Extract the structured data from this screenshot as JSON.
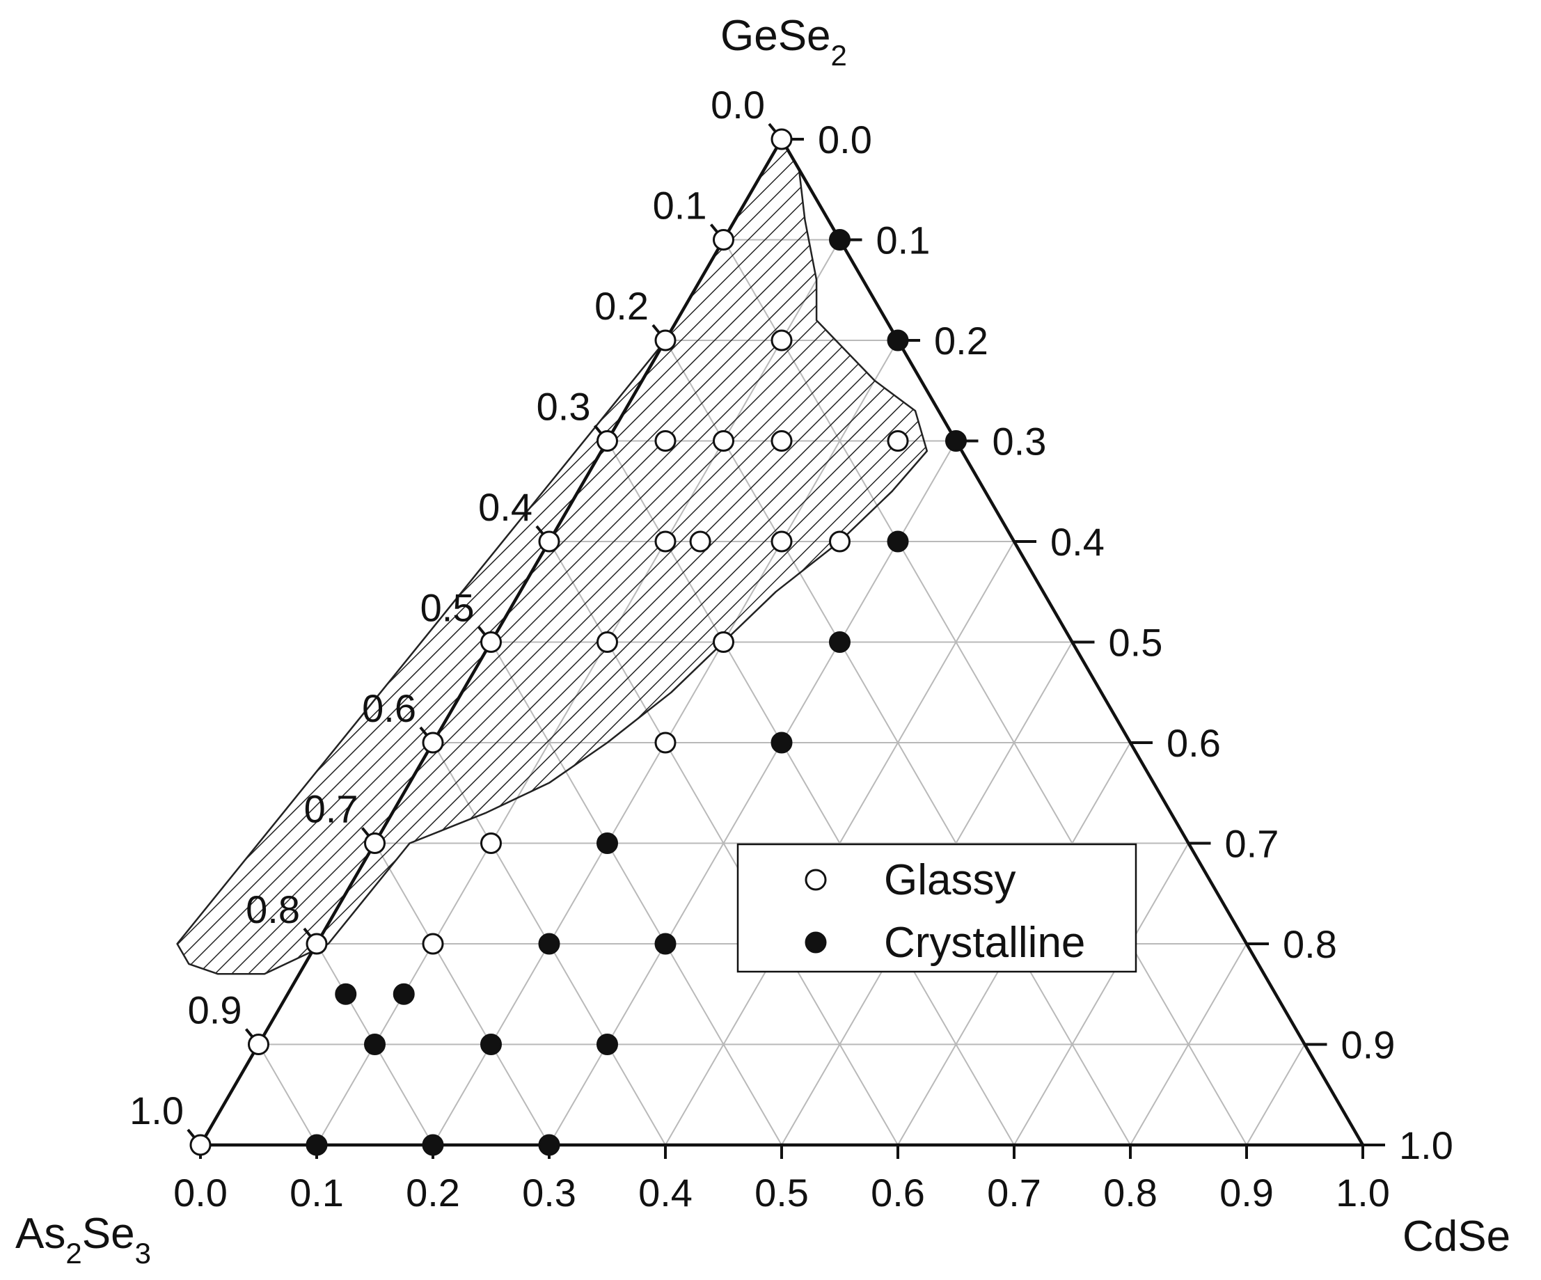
{
  "chart_data": {
    "type": "ternary",
    "vertices": {
      "top": {
        "base": "GeSe",
        "sub": "2"
      },
      "bottom_left": {
        "parts": [
          {
            "t": "As",
            "s": false
          },
          {
            "t": "2",
            "s": true
          },
          {
            "t": "Se",
            "s": false
          },
          {
            "t": "3",
            "s": true
          }
        ]
      },
      "bottom_right": {
        "base": "CdSe",
        "sub": ""
      }
    },
    "bottom_ticks": [
      "0.0",
      "0.1",
      "0.2",
      "0.3",
      "0.4",
      "0.5",
      "0.6",
      "0.7",
      "0.8",
      "0.9",
      "1.0"
    ],
    "left_ticks": [
      "0.0",
      "0.1",
      "0.2",
      "0.3",
      "0.4",
      "0.5",
      "0.6",
      "0.7",
      "0.8",
      "0.9",
      "1.0"
    ],
    "right_ticks": [
      "1.0",
      "0.9",
      "0.8",
      "0.7",
      "0.6",
      "0.5",
      "0.4",
      "0.3",
      "0.2",
      "0.1",
      "0.0"
    ],
    "grid": true,
    "glass_region": "hatched",
    "legend": {
      "position": "center-right",
      "entries": [
        {
          "label": "Glassy",
          "marker": "open-circle"
        },
        {
          "label": "Crystalline",
          "marker": "filled-circle"
        }
      ]
    },
    "series": [
      {
        "name": "Glassy",
        "points": [
          {
            "cdse": 0.0,
            "gese2": 1.0
          },
          {
            "cdse": 0.0,
            "gese2": 0.9
          },
          {
            "cdse": 0.0,
            "gese2": 0.8
          },
          {
            "cdse": 0.1,
            "gese2": 0.8
          },
          {
            "cdse": 0.0,
            "gese2": 0.7
          },
          {
            "cdse": 0.05,
            "gese2": 0.7
          },
          {
            "cdse": 0.1,
            "gese2": 0.7
          },
          {
            "cdse": 0.15,
            "gese2": 0.7
          },
          {
            "cdse": 0.25,
            "gese2": 0.7
          },
          {
            "cdse": 0.0,
            "gese2": 0.6
          },
          {
            "cdse": 0.1,
            "gese2": 0.6
          },
          {
            "cdse": 0.13,
            "gese2": 0.6
          },
          {
            "cdse": 0.2,
            "gese2": 0.6
          },
          {
            "cdse": 0.25,
            "gese2": 0.6
          },
          {
            "cdse": 0.0,
            "gese2": 0.5
          },
          {
            "cdse": 0.1,
            "gese2": 0.5
          },
          {
            "cdse": 0.2,
            "gese2": 0.5
          },
          {
            "cdse": 0.0,
            "gese2": 0.4
          },
          {
            "cdse": 0.2,
            "gese2": 0.4
          },
          {
            "cdse": 0.0,
            "gese2": 0.3
          },
          {
            "cdse": 0.1,
            "gese2": 0.3
          },
          {
            "cdse": 0.0,
            "gese2": 0.2
          },
          {
            "cdse": 0.1,
            "gese2": 0.2
          },
          {
            "cdse": 0.0,
            "gese2": 0.1
          },
          {
            "cdse": 0.0,
            "gese2": 0.0
          }
        ]
      },
      {
        "name": "Crystalline",
        "points": [
          {
            "cdse": 0.1,
            "gese2": 0.9
          },
          {
            "cdse": 0.2,
            "gese2": 0.8
          },
          {
            "cdse": 0.3,
            "gese2": 0.7
          },
          {
            "cdse": 0.3,
            "gese2": 0.6
          },
          {
            "cdse": 0.3,
            "gese2": 0.5
          },
          {
            "cdse": 0.3,
            "gese2": 0.4
          },
          {
            "cdse": 0.2,
            "gese2": 0.3
          },
          {
            "cdse": 0.2,
            "gese2": 0.2
          },
          {
            "cdse": 0.3,
            "gese2": 0.2
          },
          {
            "cdse": 0.05,
            "gese2": 0.15
          },
          {
            "cdse": 0.1,
            "gese2": 0.15
          },
          {
            "cdse": 0.1,
            "gese2": 0.1
          },
          {
            "cdse": 0.2,
            "gese2": 0.1
          },
          {
            "cdse": 0.3,
            "gese2": 0.1
          },
          {
            "cdse": 0.1,
            "gese2": 0.0
          },
          {
            "cdse": 0.2,
            "gese2": 0.0
          },
          {
            "cdse": 0.3,
            "gese2": 0.0
          }
        ]
      }
    ],
    "glass_boundary": [
      {
        "cdse": 0.0,
        "gese2": 1.0
      },
      {
        "cdse": 0.03,
        "gese2": 0.97
      },
      {
        "cdse": 0.06,
        "gese2": 0.92
      },
      {
        "cdse": 0.1,
        "gese2": 0.86
      },
      {
        "cdse": 0.12,
        "gese2": 0.82
      },
      {
        "cdse": 0.16,
        "gese2": 0.79
      },
      {
        "cdse": 0.2,
        "gese2": 0.76
      },
      {
        "cdse": 0.25,
        "gese2": 0.73
      },
      {
        "cdse": 0.28,
        "gese2": 0.69
      },
      {
        "cdse": 0.27,
        "gese2": 0.65
      },
      {
        "cdse": 0.25,
        "gese2": 0.6
      },
      {
        "cdse": 0.22,
        "gese2": 0.55
      },
      {
        "cdse": 0.2,
        "gese2": 0.5
      },
      {
        "cdse": 0.18,
        "gese2": 0.45
      },
      {
        "cdse": 0.15,
        "gese2": 0.4
      },
      {
        "cdse": 0.12,
        "gese2": 0.36
      },
      {
        "cdse": 0.08,
        "gese2": 0.33
      },
      {
        "cdse": 0.03,
        "gese2": 0.3
      },
      {
        "cdse": 0.02,
        "gese2": 0.25
      },
      {
        "cdse": 0.01,
        "gese2": 0.2
      },
      {
        "cdse": -0.03,
        "gese2": 0.17
      },
      {
        "cdse": -0.07,
        "gese2": 0.17
      },
      {
        "cdse": -0.1,
        "gese2": 0.18
      },
      {
        "cdse": -0.12,
        "gese2": 0.2
      },
      {
        "cdse": 0.0,
        "gese2": 0.8
      }
    ]
  },
  "colors": {
    "axis": "#111111",
    "grid": "#b9b9b9",
    "hatch": "#222222",
    "marker_fill_open": "#ffffff",
    "marker_fill_solid": "#111111",
    "background": "#ffffff"
  }
}
